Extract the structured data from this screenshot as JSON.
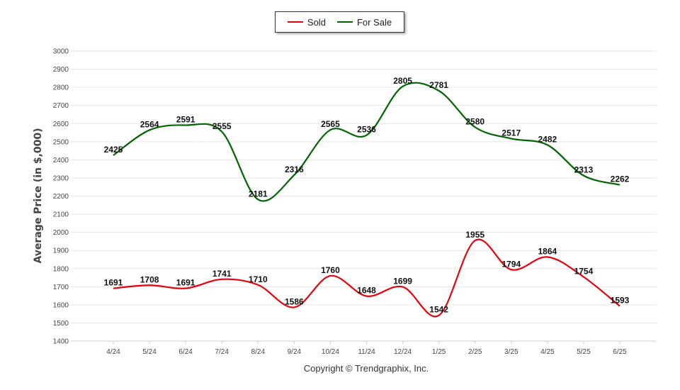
{
  "chart_data": {
    "type": "line",
    "categories": [
      "4/24",
      "5/24",
      "6/24",
      "7/24",
      "8/24",
      "9/24",
      "10/24",
      "11/24",
      "12/24",
      "1/25",
      "2/25",
      "3/25",
      "4/25",
      "5/25",
      "6/25"
    ],
    "series": [
      {
        "name": "Sold",
        "color": "#e8000b",
        "values": [
          1691,
          1708,
          1691,
          1741,
          1710,
          1586,
          1760,
          1648,
          1699,
          1542,
          1955,
          1794,
          1864,
          1754,
          1593
        ]
      },
      {
        "name": "For Sale",
        "color": "#006400",
        "values": [
          2425,
          2564,
          2591,
          2555,
          2181,
          2316,
          2565,
          2536,
          2805,
          2781,
          2580,
          2517,
          2482,
          2313,
          2262
        ]
      }
    ],
    "ylabel": "Average Price (in $,000)",
    "xlabel": "",
    "ylim": [
      1400,
      3000
    ],
    "yticks": [
      1400,
      1500,
      1600,
      1700,
      1800,
      1900,
      2000,
      2100,
      2200,
      2300,
      2400,
      2500,
      2600,
      2700,
      2800,
      2900,
      3000
    ],
    "grid": true,
    "legend_position": "top-center",
    "data_labels": true
  },
  "legend": {
    "sold_label": "Sold",
    "forsale_label": "For Sale"
  },
  "footer": {
    "copyright": "Copyright © Trendgraphix, Inc."
  }
}
